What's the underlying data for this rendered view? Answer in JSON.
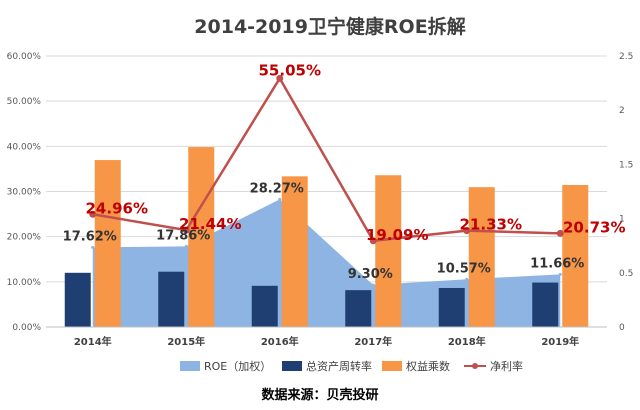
{
  "source": "数据来源：贝壳投研",
  "chart_data": {
    "type": "bar",
    "title": "2014-2019卫宁健康ROE拆解",
    "categories": [
      "2014年",
      "2015年",
      "2016年",
      "2017年",
      "2018年",
      "2019年"
    ],
    "left_axis": {
      "ylim": [
        0,
        0.6
      ],
      "ticks": [
        0,
        0.1,
        0.2,
        0.3,
        0.4,
        0.5,
        0.6
      ],
      "tick_labels": [
        "0.00%",
        "10.00%",
        "20.00%",
        "30.00%",
        "40.00%",
        "50.00%",
        "60.00%"
      ]
    },
    "right_axis": {
      "ylim": [
        0,
        2.5
      ],
      "ticks": [
        0,
        0.5,
        1,
        1.5,
        2,
        2.5
      ],
      "tick_labels": [
        "0",
        "0.5",
        "1",
        "1.5",
        "2",
        "2.5"
      ]
    },
    "series": [
      {
        "name": "ROE（加权）",
        "kind": "area",
        "axis": "left",
        "color": "#8eb4e3",
        "values": [
          0.1762,
          0.1786,
          0.2827,
          0.093,
          0.1057,
          0.1166
        ],
        "labels": [
          "17.62%",
          "17.86%",
          "28.27%",
          "9.30%",
          "10.57%",
          "11.66%"
        ],
        "label_color": "#333333"
      },
      {
        "name": "总资产周转率",
        "kind": "bar",
        "axis": "right",
        "color": "#1f3f73",
        "values": [
          0.5,
          0.51,
          0.38,
          0.34,
          0.36,
          0.41
        ]
      },
      {
        "name": "权益乘数",
        "kind": "bar",
        "axis": "right",
        "color": "#f79646",
        "values": [
          1.54,
          1.66,
          1.39,
          1.4,
          1.29,
          1.31
        ]
      },
      {
        "name": "净利率",
        "kind": "line",
        "axis": "left",
        "color": "#c0504d",
        "values": [
          0.2496,
          0.2144,
          0.5505,
          0.1909,
          0.2133,
          0.2073
        ],
        "labels": [
          "24.96%",
          "21.44%",
          "55.05%",
          "19.09%",
          "21.33%",
          "20.73%"
        ],
        "label_color": "#c00000"
      }
    ],
    "legend": [
      "ROE（加权）",
      "总资产周转率",
      "权益乘数",
      "净利率"
    ],
    "grid": true
  }
}
